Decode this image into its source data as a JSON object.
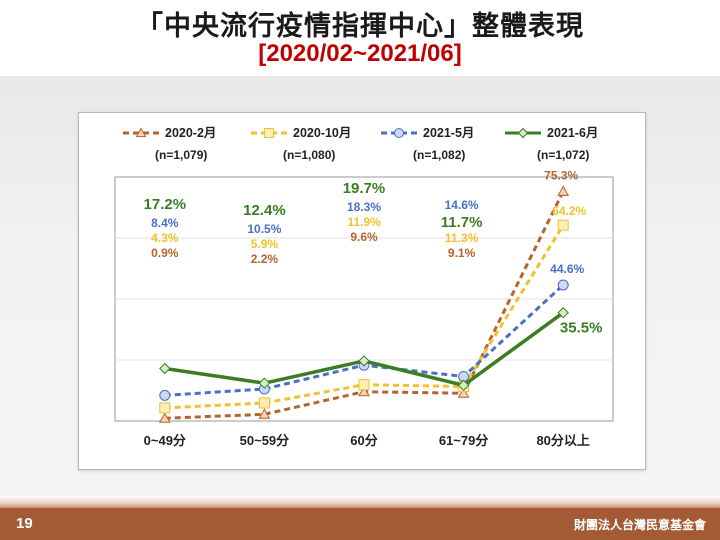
{
  "slide": {
    "title": "「中央流行疫情指揮中心」整體表現",
    "subtitle": "[2020/02~2021/06]",
    "page_number": "19",
    "organization": "財團法人台灣民意基金會"
  },
  "colors": {
    "footer": "#a45a35",
    "subtitle": "#c00000"
  },
  "chart_data": {
    "type": "line",
    "categories": [
      "0~49分",
      "50~59分",
      "60分",
      "61~79分",
      "80分以上"
    ],
    "ylim": [
      0,
      80
    ],
    "grid": true,
    "legend_position": "top",
    "series": [
      {
        "name": "2020-2月",
        "n": "(n=1,079)",
        "color": "#b5652b",
        "dash": "6,4",
        "marker": "triangle",
        "values": [
          0.9,
          2.2,
          9.6,
          9.1,
          75.3
        ],
        "labels": [
          "0.9%",
          "2.2%",
          "9.6%",
          "9.1%",
          "75.3%"
        ]
      },
      {
        "name": "2020-10月",
        "n": "(n=1,080)",
        "color": "#f2c12e",
        "dash": "6,4",
        "marker": "square",
        "values": [
          4.3,
          5.9,
          11.9,
          11.3,
          64.2
        ],
        "labels": [
          "4.3%",
          "5.9%",
          "11.9%",
          "11.3%",
          "64.2%"
        ]
      },
      {
        "name": "2021-5月",
        "n": "(n=1,082)",
        "color": "#4a6fc6",
        "dash": "6,4",
        "marker": "circle",
        "values": [
          8.4,
          10.5,
          18.3,
          14.6,
          44.6
        ],
        "labels": [
          "8.4%",
          "10.5%",
          "18.3%",
          "14.6%",
          "44.6%"
        ]
      },
      {
        "name": "2021-6月",
        "n": "(n=1,072)",
        "color": "#3a7d22",
        "dash": "",
        "marker": "diamond",
        "values": [
          17.2,
          12.4,
          19.7,
          11.7,
          35.5
        ],
        "labels": [
          "17.2%",
          "12.4%",
          "19.7%",
          "11.7%",
          "35.5%"
        ]
      }
    ]
  }
}
